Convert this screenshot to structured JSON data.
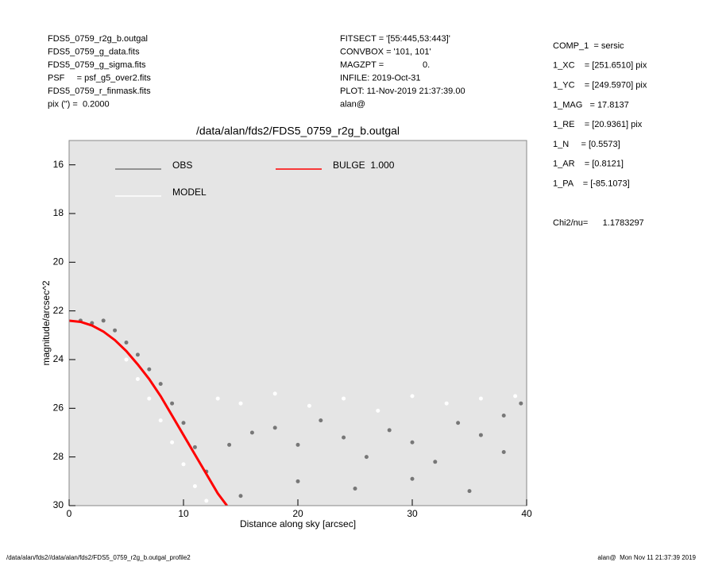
{
  "header": {
    "left": [
      "FDS5_0759_r2g_b.outgal",
      "FDS5_0759_g_data.fits",
      "FDS5_0759_g_sigma.fits",
      "PSF     = psf_g5_over2.fits",
      "FDS5_0759_r_finmask.fits",
      "pix (\") =  0.2000"
    ],
    "center": [
      "FITSECT = '[55:445,53:443]'",
      "CONVBOX = '101, 101'",
      "MAGZPT =                0.",
      "INFILE: 2019-Oct-31",
      "PLOT: 11-Nov-2019 21:37:39.00",
      "alan@"
    ],
    "right": [
      "COMP_1  = sersic",
      "1_XC    = [251.6510] pix",
      "1_YC    = [249.5970] pix",
      "1_MAG   = 17.8137",
      "1_RE    = [20.9361] pix",
      "1_N     = [0.5573]",
      "1_AR    = [0.8121]",
      "1_PA    = [-85.1073]"
    ],
    "chi2": "Chi2/nu=      1.1783297"
  },
  "footer": {
    "left": "/data/alan/fds2//data/alan/fds2/FDS5_0759_r2g_b.outgal_profile2",
    "right": "alan@  Mon Nov 11 21:37:39 2019"
  },
  "chart_data": {
    "type": "scatter",
    "title": "/data/alan/fds2/FDS5_0759_r2g_b.outgal",
    "x_label": "Distance along sky [arcsec]",
    "y_label": "magnitude/arcsec^2",
    "xlim": [
      0,
      40
    ],
    "xticks": [
      0,
      10,
      20,
      30,
      40
    ],
    "ylim": [
      30,
      15
    ],
    "yticks": [
      16,
      18,
      20,
      22,
      24,
      26,
      28,
      30
    ],
    "background": "#e5e5e5",
    "series": [
      {
        "name": "OBS",
        "color": "#777777",
        "style": "points",
        "x": [
          1,
          2,
          3,
          4,
          5,
          6,
          7,
          8,
          9,
          10,
          11,
          12,
          14,
          16,
          18,
          20,
          22,
          24,
          26,
          28,
          30,
          32,
          34,
          36,
          38,
          39.5,
          20,
          25,
          30,
          35,
          15,
          38
        ],
        "values": [
          22.4,
          22.5,
          22.4,
          22.8,
          23.3,
          23.8,
          24.4,
          25.0,
          25.8,
          26.6,
          27.6,
          28.6,
          27.5,
          27.0,
          26.8,
          27.5,
          26.5,
          27.2,
          28.0,
          26.9,
          27.4,
          28.2,
          26.6,
          27.1,
          27.8,
          25.8,
          29.0,
          29.3,
          28.9,
          29.4,
          29.6,
          26.3
        ]
      },
      {
        "name": "MODEL",
        "color": "#ffffff",
        "style": "points",
        "x": [
          5,
          6,
          7,
          8,
          9,
          10,
          11,
          12,
          13,
          15,
          18,
          21,
          24,
          27,
          30,
          33,
          36,
          39
        ],
        "values": [
          24.0,
          24.8,
          25.6,
          26.5,
          27.4,
          28.3,
          29.2,
          29.8,
          25.6,
          25.8,
          25.4,
          25.9,
          25.6,
          26.1,
          25.5,
          25.8,
          25.6,
          25.5
        ]
      },
      {
        "name": "BULGE  1.000",
        "color": "#ff0000",
        "style": "line",
        "x": [
          0,
          1,
          2,
          3,
          4,
          5,
          6,
          7,
          8,
          9,
          10,
          11,
          12,
          13,
          13.8
        ],
        "values": [
          22.4,
          22.45,
          22.6,
          22.85,
          23.2,
          23.65,
          24.2,
          24.8,
          25.5,
          26.3,
          27.1,
          27.9,
          28.7,
          29.5,
          30
        ]
      }
    ]
  }
}
